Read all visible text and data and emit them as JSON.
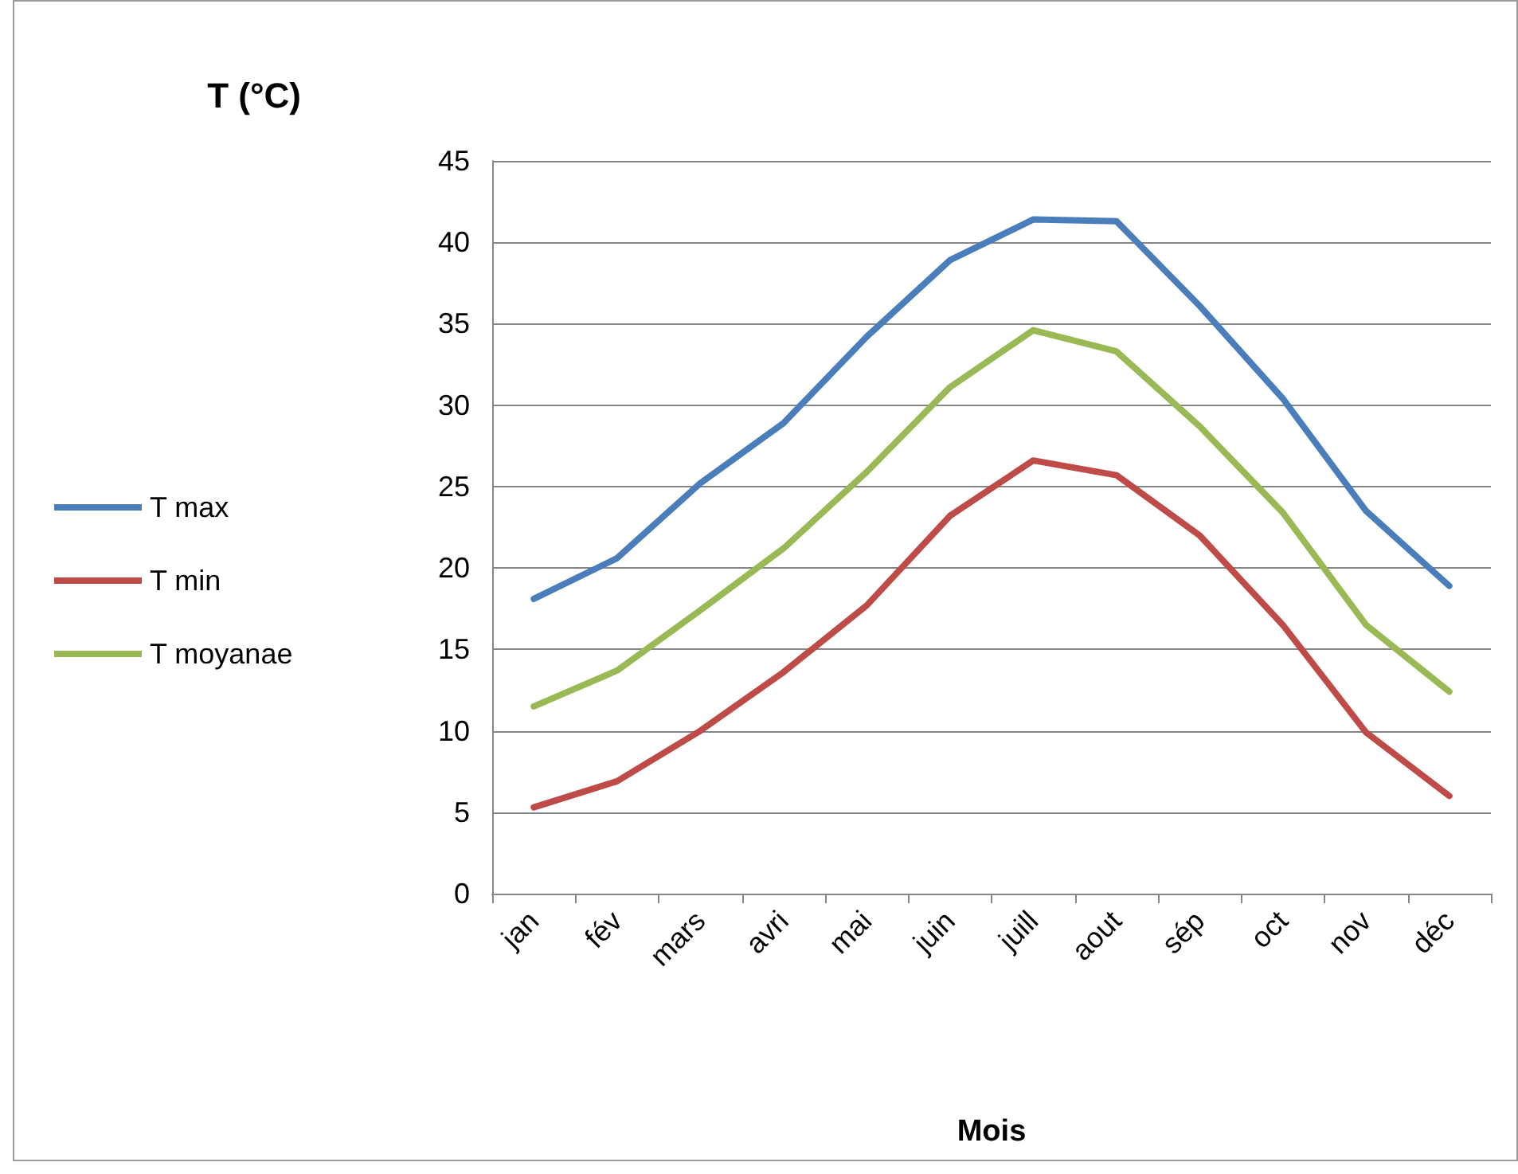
{
  "chart_data": {
    "type": "line",
    "ylabel": "T (°C)",
    "xlabel": "Mois",
    "categories": [
      "jan",
      "fév",
      "mars",
      "avri",
      "mai",
      "juin",
      "juill",
      "aout",
      "sép",
      "oct",
      "nov",
      "déc"
    ],
    "series": [
      {
        "name": "T max",
        "color": "#4a7ebb",
        "values": [
          18.1,
          20.6,
          25.2,
          28.9,
          34.2,
          38.9,
          41.4,
          41.3,
          36.1,
          30.4,
          23.5,
          18.9
        ]
      },
      {
        "name": "T min",
        "color": "#be4b48",
        "values": [
          5.3,
          6.9,
          10.0,
          13.6,
          17.7,
          23.2,
          26.6,
          25.7,
          22.0,
          16.5,
          9.9,
          6.0
        ]
      },
      {
        "name": "T moyanae",
        "color": "#98b954",
        "values": [
          11.5,
          13.7,
          17.4,
          21.2,
          25.9,
          31.1,
          34.6,
          33.3,
          28.7,
          23.4,
          16.5,
          12.4
        ]
      }
    ],
    "ylim": [
      0,
      45
    ],
    "yticks": [
      0,
      5,
      10,
      15,
      20,
      25,
      30,
      35,
      40,
      45
    ],
    "grid": "y",
    "legend": "left",
    "marker": "none",
    "line_style": "solid"
  }
}
